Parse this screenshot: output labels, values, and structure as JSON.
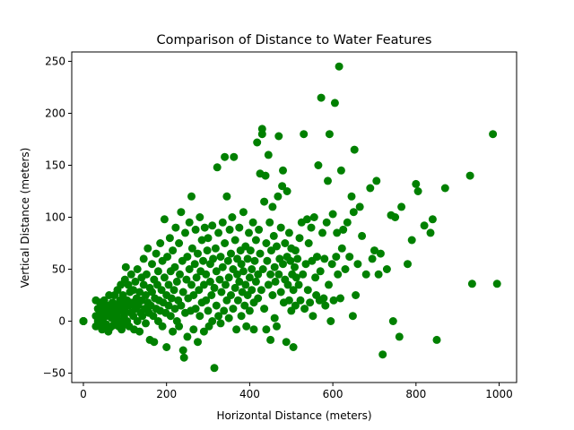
{
  "chart_data": {
    "type": "scatter",
    "title": "Comparison of Distance to Water Features",
    "xlabel": "Horizontal Distance (meters)",
    "ylabel": "Vertical Distance (meters)",
    "xlim": [
      -28,
      1042
    ],
    "ylim": [
      -59,
      259
    ],
    "xticks": [
      0,
      200,
      400,
      600,
      800,
      1000
    ],
    "yticks": [
      -50,
      0,
      50,
      100,
      150,
      200,
      250
    ],
    "grid": false,
    "legend": "none",
    "color": "#008000",
    "points": [
      [
        0,
        0
      ],
      [
        0,
        0
      ],
      [
        0,
        0
      ],
      [
        0,
        0
      ],
      [
        0,
        0
      ],
      [
        0,
        0
      ],
      [
        30,
        20
      ],
      [
        30,
        5
      ],
      [
        30,
        -5
      ],
      [
        35,
        12
      ],
      [
        35,
        0
      ],
      [
        40,
        18
      ],
      [
        40,
        -3
      ],
      [
        42,
        8
      ],
      [
        45,
        15
      ],
      [
        45,
        -8
      ],
      [
        48,
        3
      ],
      [
        50,
        20
      ],
      [
        50,
        -5
      ],
      [
        55,
        10
      ],
      [
        55,
        -3
      ],
      [
        58,
        15
      ],
      [
        60,
        5
      ],
      [
        60,
        -10
      ],
      [
        62,
        25
      ],
      [
        65,
        12
      ],
      [
        65,
        -6
      ],
      [
        68,
        3
      ],
      [
        70,
        18
      ],
      [
        70,
        8
      ],
      [
        72,
        -4
      ],
      [
        75,
        12
      ],
      [
        75,
        25
      ],
      [
        78,
        0
      ],
      [
        80,
        15
      ],
      [
        80,
        5
      ],
      [
        82,
        30
      ],
      [
        85,
        -5
      ],
      [
        85,
        10
      ],
      [
        88,
        20
      ],
      [
        90,
        35
      ],
      [
        90,
        0
      ],
      [
        92,
        -8
      ],
      [
        95,
        15
      ],
      [
        95,
        25
      ],
      [
        98,
        5
      ],
      [
        100,
        40
      ],
      [
        100,
        10
      ],
      [
        100,
        -3
      ],
      [
        102,
        52
      ],
      [
        105,
        20
      ],
      [
        105,
        0
      ],
      [
        108,
        35
      ],
      [
        110,
        15
      ],
      [
        110,
        -5
      ],
      [
        112,
        28
      ],
      [
        115,
        8
      ],
      [
        115,
        45
      ],
      [
        118,
        18
      ],
      [
        120,
        5
      ],
      [
        120,
        30
      ],
      [
        122,
        -8
      ],
      [
        125,
        12
      ],
      [
        125,
        38
      ],
      [
        128,
        22
      ],
      [
        130,
        0
      ],
      [
        130,
        50
      ],
      [
        132,
        15
      ],
      [
        135,
        28
      ],
      [
        135,
        -10
      ],
      [
        138,
        8
      ],
      [
        140,
        42
      ],
      [
        140,
        20
      ],
      [
        142,
        5
      ],
      [
        145,
        35
      ],
      [
        145,
        60
      ],
      [
        148,
        12
      ],
      [
        150,
        25
      ],
      [
        150,
        -2
      ],
      [
        152,
        45
      ],
      [
        155,
        18
      ],
      [
        155,
        70
      ],
      [
        158,
        8
      ],
      [
        160,
        32
      ],
      [
        160,
        -18
      ],
      [
        162,
        15
      ],
      [
        165,
        55
      ],
      [
        165,
        28
      ],
      [
        168,
        5
      ],
      [
        170,
        40
      ],
      [
        170,
        -20
      ],
      [
        172,
        22
      ],
      [
        175,
        65
      ],
      [
        175,
        12
      ],
      [
        178,
        35
      ],
      [
        180,
        0
      ],
      [
        180,
        48
      ],
      [
        182,
        20
      ],
      [
        185,
        75
      ],
      [
        185,
        10
      ],
      [
        188,
        30
      ],
      [
        190,
        58
      ],
      [
        190,
        -5
      ],
      [
        192,
        18
      ],
      [
        195,
        42
      ],
      [
        195,
        98
      ],
      [
        198,
        8
      ],
      [
        200,
        25
      ],
      [
        200,
        -25
      ],
      [
        202,
        62
      ],
      [
        205,
        15
      ],
      [
        205,
        35
      ],
      [
        208,
        80
      ],
      [
        210,
        5
      ],
      [
        210,
        48
      ],
      [
        212,
        22
      ],
      [
        215,
        -10
      ],
      [
        215,
        68
      ],
      [
        218,
        30
      ],
      [
        220,
        12
      ],
      [
        220,
        52
      ],
      [
        222,
        90
      ],
      [
        225,
        0
      ],
      [
        225,
        38
      ],
      [
        228,
        20
      ],
      [
        230,
        75
      ],
      [
        230,
        -5
      ],
      [
        232,
        45
      ],
      [
        235,
        105
      ],
      [
        235,
        15
      ],
      [
        238,
        58
      ],
      [
        240,
        28
      ],
      [
        240,
        -28
      ],
      [
        242,
        -35
      ],
      [
        245,
        85
      ],
      [
        245,
        8
      ],
      [
        248,
        40
      ],
      [
        250,
        62
      ],
      [
        250,
        -15
      ],
      [
        252,
        22
      ],
      [
        255,
        95
      ],
      [
        255,
        50
      ],
      [
        258,
        10
      ],
      [
        260,
        35
      ],
      [
        260,
        120
      ],
      [
        262,
        70
      ],
      [
        265,
        -8
      ],
      [
        265,
        25
      ],
      [
        268,
        55
      ],
      [
        270,
        88
      ],
      [
        270,
        12
      ],
      [
        272,
        42
      ],
      [
        275,
        -20
      ],
      [
        275,
        65
      ],
      [
        278,
        30
      ],
      [
        280,
        100
      ],
      [
        280,
        5
      ],
      [
        282,
        48
      ],
      [
        285,
        78
      ],
      [
        285,
        18
      ],
      [
        288,
        58
      ],
      [
        290,
        35
      ],
      [
        290,
        -10
      ],
      [
        292,
        90
      ],
      [
        295,
        20
      ],
      [
        295,
        45
      ],
      [
        298,
        68
      ],
      [
        300,
        10
      ],
      [
        300,
        80
      ],
      [
        302,
        -5
      ],
      [
        305,
        38
      ],
      [
        305,
        55
      ],
      [
        308,
        25
      ],
      [
        310,
        92
      ],
      [
        310,
        0
      ],
      [
        312,
        60
      ],
      [
        315,
        -45
      ],
      [
        315,
        32
      ],
      [
        318,
        70
      ],
      [
        320,
        15
      ],
      [
        320,
        48
      ],
      [
        322,
        148
      ],
      [
        325,
        85
      ],
      [
        325,
        5
      ],
      [
        328,
        40
      ],
      [
        330,
        62
      ],
      [
        330,
        -2
      ],
      [
        332,
        28
      ],
      [
        335,
        95
      ],
      [
        335,
        52
      ],
      [
        338,
        10
      ],
      [
        340,
        75
      ],
      [
        340,
        158
      ],
      [
        342,
        35
      ],
      [
        345,
        20
      ],
      [
        345,
        120
      ],
      [
        348,
        58
      ],
      [
        350,
        3
      ],
      [
        350,
        42
      ],
      [
        352,
        88
      ],
      [
        355,
        65
      ],
      [
        355,
        25
      ],
      [
        358,
        100
      ],
      [
        360,
        12
      ],
      [
        360,
        50
      ],
      [
        362,
        158
      ],
      [
        365,
        32
      ],
      [
        365,
        78
      ],
      [
        368,
        -8
      ],
      [
        370,
        60
      ],
      [
        370,
        45
      ],
      [
        372,
        20
      ],
      [
        375,
        90
      ],
      [
        375,
        38
      ],
      [
        378,
        68
      ],
      [
        380,
        5
      ],
      [
        380,
        55
      ],
      [
        382,
        28
      ],
      [
        385,
        105
      ],
      [
        385,
        48
      ],
      [
        388,
        15
      ],
      [
        390,
        72
      ],
      [
        390,
        35
      ],
      [
        392,
        -5
      ],
      [
        395,
        60
      ],
      [
        395,
        25
      ],
      [
        398,
        85
      ],
      [
        400,
        42
      ],
      [
        400,
        10
      ],
      [
        402,
        68
      ],
      [
        405,
        50
      ],
      [
        405,
        30
      ],
      [
        408,
        95
      ],
      [
        410,
        18
      ],
      [
        410,
        -8
      ],
      [
        412,
        58
      ],
      [
        415,
        78
      ],
      [
        415,
        38
      ],
      [
        418,
        172
      ],
      [
        420,
        22
      ],
      [
        420,
        45
      ],
      [
        422,
        88
      ],
      [
        425,
        142
      ],
      [
        425,
        65
      ],
      [
        428,
        30
      ],
      [
        430,
        185
      ],
      [
        430,
        180
      ],
      [
        432,
        50
      ],
      [
        435,
        115
      ],
      [
        435,
        12
      ],
      [
        438,
        140
      ],
      [
        440,
        75
      ],
      [
        440,
        -8
      ],
      [
        442,
        58
      ],
      [
        445,
        35
      ],
      [
        445,
        160
      ],
      [
        448,
        95
      ],
      [
        450,
        45
      ],
      [
        450,
        -18
      ],
      [
        452,
        68
      ],
      [
        455,
        110
      ],
      [
        455,
        25
      ],
      [
        458,
        82
      ],
      [
        460,
        52
      ],
      [
        460,
        3
      ],
      [
        462,
        38
      ],
      [
        465,
        72
      ],
      [
        465,
        -5
      ],
      [
        468,
        120
      ],
      [
        470,
        45
      ],
      [
        470,
        178
      ],
      [
        472,
        60
      ],
      [
        475,
        28
      ],
      [
        475,
        90
      ],
      [
        478,
        130
      ],
      [
        480,
        55
      ],
      [
        480,
        145
      ],
      [
        482,
        18
      ],
      [
        485,
        75
      ],
      [
        485,
        40
      ],
      [
        488,
        -20
      ],
      [
        490,
        62
      ],
      [
        490,
        125
      ],
      [
        492,
        35
      ],
      [
        495,
        85
      ],
      [
        495,
        20
      ],
      [
        498,
        58
      ],
      [
        500,
        10
      ],
      [
        500,
        70
      ],
      [
        502,
        45
      ],
      [
        505,
        -25
      ],
      [
        505,
        30
      ],
      [
        508,
        52
      ],
      [
        510,
        68
      ],
      [
        510,
        15
      ],
      [
        512,
        42
      ],
      [
        515,
        60
      ],
      [
        518,
        35
      ],
      [
        520,
        80
      ],
      [
        522,
        20
      ],
      [
        525,
        95
      ],
      [
        528,
        45
      ],
      [
        530,
        180
      ],
      [
        532,
        12
      ],
      [
        535,
        55
      ],
      [
        538,
        98
      ],
      [
        540,
        30
      ],
      [
        542,
        75
      ],
      [
        545,
        18
      ],
      [
        548,
        90
      ],
      [
        550,
        58
      ],
      [
        552,
        5
      ],
      [
        555,
        100
      ],
      [
        558,
        42
      ],
      [
        560,
        25
      ],
      [
        562,
        62
      ],
      [
        565,
        150
      ],
      [
        568,
        20
      ],
      [
        570,
        48
      ],
      [
        572,
        215
      ],
      [
        575,
        85
      ],
      [
        578,
        22
      ],
      [
        580,
        60
      ],
      [
        582,
        15
      ],
      [
        585,
        95
      ],
      [
        588,
        135
      ],
      [
        590,
        35
      ],
      [
        592,
        180
      ],
      [
        595,
        0
      ],
      [
        598,
        55
      ],
      [
        600,
        103
      ],
      [
        602,
        20
      ],
      [
        605,
        210
      ],
      [
        608,
        62
      ],
      [
        610,
        85
      ],
      [
        612,
        45
      ],
      [
        615,
        245
      ],
      [
        618,
        22
      ],
      [
        620,
        145
      ],
      [
        622,
        70
      ],
      [
        625,
        88
      ],
      [
        630,
        50
      ],
      [
        635,
        95
      ],
      [
        640,
        62
      ],
      [
        645,
        120
      ],
      [
        648,
        5
      ],
      [
        650,
        105
      ],
      [
        652,
        165
      ],
      [
        655,
        25
      ],
      [
        660,
        55
      ],
      [
        665,
        110
      ],
      [
        670,
        82
      ],
      [
        680,
        45
      ],
      [
        690,
        128
      ],
      [
        695,
        60
      ],
      [
        700,
        68
      ],
      [
        705,
        135
      ],
      [
        710,
        45
      ],
      [
        715,
        65
      ],
      [
        720,
        -32
      ],
      [
        730,
        50
      ],
      [
        740,
        102
      ],
      [
        745,
        0
      ],
      [
        750,
        100
      ],
      [
        760,
        -15
      ],
      [
        765,
        110
      ],
      [
        780,
        55
      ],
      [
        790,
        78
      ],
      [
        800,
        132
      ],
      [
        805,
        125
      ],
      [
        820,
        92
      ],
      [
        835,
        85
      ],
      [
        840,
        98
      ],
      [
        850,
        -18
      ],
      [
        870,
        128
      ],
      [
        930,
        140
      ],
      [
        935,
        36
      ],
      [
        985,
        180
      ],
      [
        995,
        36
      ]
    ]
  }
}
